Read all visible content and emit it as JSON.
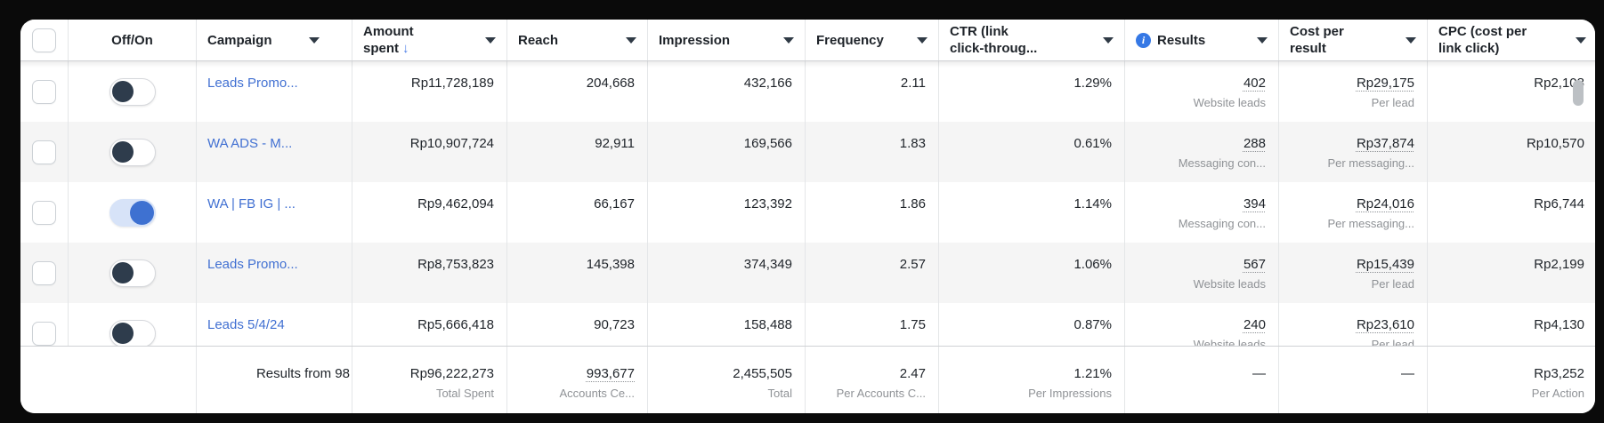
{
  "colors": {
    "link_blue": "#4170d2",
    "toggle_on_blue": "#3e71d1",
    "toggle_off_knob": "#2e3c4c",
    "info_icon_blue": "#3578e5",
    "sort_arrow_blue": "#4d7fe8",
    "row_stripe": "#f5f5f5"
  },
  "header": {
    "off_on": "Off/On",
    "campaign": "Campaign",
    "amount_line1": "Amount",
    "amount_line2": "spent",
    "sort_arrow": "↓",
    "reach": "Reach",
    "impression": "Impression",
    "frequency": "Frequency",
    "ctr_line1": "CTR (link",
    "ctr_line2": "click-throug...",
    "results": "Results",
    "info_glyph": "i",
    "cost_line1": "Cost per",
    "cost_line2": "result",
    "cpc_line1": "CPC (cost per",
    "cpc_line2": "link click)"
  },
  "rows": [
    {
      "toggle_on": false,
      "campaign": "Leads Promo...",
      "amount_spent": "Rp11,728,189",
      "reach": "204,668",
      "impression": "432,166",
      "frequency": "2.11",
      "ctr": "1.29%",
      "results": "402",
      "results_type": "Website leads",
      "cost_per_result": "Rp29,175",
      "cost_per_result_type": "Per lead",
      "cpc": "Rp2,108"
    },
    {
      "toggle_on": false,
      "campaign": "WA ADS - M...",
      "amount_spent": "Rp10,907,724",
      "reach": "92,911",
      "impression": "169,566",
      "frequency": "1.83",
      "ctr": "0.61%",
      "results": "288",
      "results_type": "Messaging con...",
      "cost_per_result": "Rp37,874",
      "cost_per_result_type": "Per messaging...",
      "cpc": "Rp10,570"
    },
    {
      "toggle_on": true,
      "campaign": "WA | FB IG | ...",
      "amount_spent": "Rp9,462,094",
      "reach": "66,167",
      "impression": "123,392",
      "frequency": "1.86",
      "ctr": "1.14%",
      "results": "394",
      "results_type": "Messaging con...",
      "cost_per_result": "Rp24,016",
      "cost_per_result_type": "Per messaging...",
      "cpc": "Rp6,744"
    },
    {
      "toggle_on": false,
      "campaign": "Leads Promo...",
      "amount_spent": "Rp8,753,823",
      "reach": "145,398",
      "impression": "374,349",
      "frequency": "2.57",
      "ctr": "1.06%",
      "results": "567",
      "results_type": "Website leads",
      "cost_per_result": "Rp15,439",
      "cost_per_result_type": "Per lead",
      "cpc": "Rp2,199"
    },
    {
      "toggle_on": false,
      "campaign": "Leads 5/4/24",
      "amount_spent": "Rp5,666,418",
      "reach": "90,723",
      "impression": "158,488",
      "frequency": "1.75",
      "ctr": "0.87%",
      "results": "240",
      "results_type": "Website leads",
      "cost_per_result": "Rp23,610",
      "cost_per_result_type": "Per lead",
      "cpc": "Rp4,130"
    }
  ],
  "footer": {
    "label": "Results from 98",
    "amount": "Rp96,222,273",
    "amount_sub": "Total Spent",
    "reach": "993,677",
    "reach_sub": "Accounts Ce...",
    "impression": "2,455,505",
    "impression_sub": "Total",
    "frequency": "2.47",
    "frequency_sub": "Per Accounts C...",
    "ctr": "1.21%",
    "ctr_sub": "Per Impressions",
    "results": "—",
    "cost": "—",
    "cpc": "Rp3,252",
    "cpc_sub": "Per Action"
  }
}
